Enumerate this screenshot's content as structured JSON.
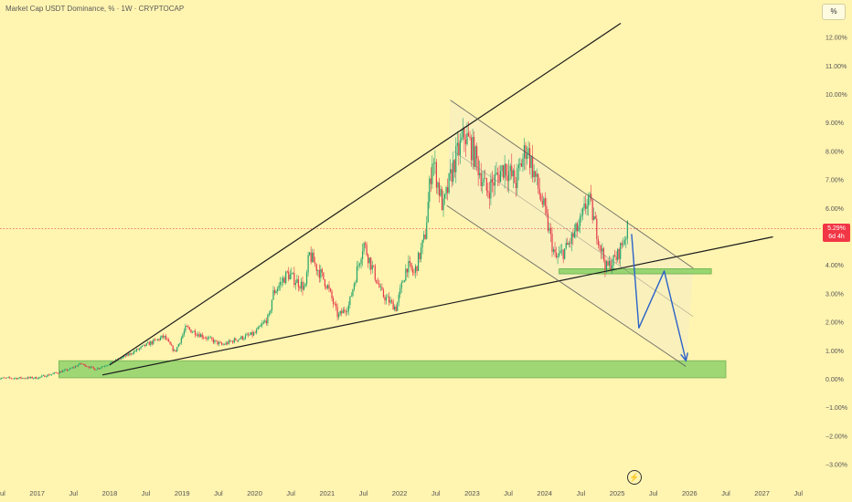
{
  "header": {
    "title": "Market Cap USDT Dominance, % · 1W · CRYPTOCAP",
    "scale_button": "%"
  },
  "price_tag": {
    "value": "5.29%",
    "countdown": "6d 4h"
  },
  "icons": {
    "replay": "lightning-icon"
  },
  "colors": {
    "background": "#fff4b0",
    "up": "#22a46b",
    "down": "#e5394a",
    "zone": "#8fd36a",
    "channel": "#f8efbe",
    "trendline": "#1b1b1b",
    "arrow": "#2b63c9",
    "current_line": "#f23645"
  },
  "chart_data": {
    "type": "candlestick",
    "title": "Market Cap USDT Dominance, % · 1W · CRYPTOCAP",
    "xlabel": "",
    "ylabel": "%",
    "ylim": [
      -3.1,
      12.8
    ],
    "y_ticks": [
      "12.00%",
      "11.00%",
      "10.00%",
      "9.00%",
      "8.00%",
      "7.00%",
      "6.00%",
      "5.00%",
      "4.00%",
      "3.00%",
      "2.00%",
      "1.00%",
      "0.00%",
      "−1.00%",
      "−2.00%",
      "−3.00%"
    ],
    "x_ticks": [
      {
        "label": "Jul",
        "t": 2016.5
      },
      {
        "label": "2017",
        "t": 2017.0
      },
      {
        "label": "Jul",
        "t": 2017.5
      },
      {
        "label": "2018",
        "t": 2018.0
      },
      {
        "label": "Jul",
        "t": 2018.5
      },
      {
        "label": "2019",
        "t": 2019.0
      },
      {
        "label": "Jul",
        "t": 2019.5
      },
      {
        "label": "2020",
        "t": 2020.0
      },
      {
        "label": "Jul",
        "t": 2020.5
      },
      {
        "label": "2021",
        "t": 2021.0
      },
      {
        "label": "Jul",
        "t": 2021.5
      },
      {
        "label": "2022",
        "t": 2022.0
      },
      {
        "label": "Jul",
        "t": 2022.5
      },
      {
        "label": "2023",
        "t": 2023.0
      },
      {
        "label": "Jul",
        "t": 2023.5
      },
      {
        "label": "2024",
        "t": 2024.0
      },
      {
        "label": "Jul",
        "t": 2024.5
      },
      {
        "label": "2025",
        "t": 2025.0
      },
      {
        "label": "Jul",
        "t": 2025.5
      },
      {
        "label": "2026",
        "t": 2026.0
      },
      {
        "label": "Jul",
        "t": 2026.5
      },
      {
        "label": "2027",
        "t": 2027.0
      },
      {
        "label": "Jul",
        "t": 2027.5
      }
    ],
    "price_path": [
      [
        2016.45,
        0.03
      ],
      [
        2017.0,
        0.05
      ],
      [
        2017.2,
        0.18
      ],
      [
        2017.45,
        0.35
      ],
      [
        2017.6,
        0.55
      ],
      [
        2017.8,
        0.35
      ],
      [
        2018.0,
        0.55
      ],
      [
        2018.25,
        0.85
      ],
      [
        2018.5,
        1.2
      ],
      [
        2018.75,
        1.5
      ],
      [
        2018.9,
        0.95
      ],
      [
        2019.05,
        1.8
      ],
      [
        2019.3,
        1.5
      ],
      [
        2019.55,
        1.2
      ],
      [
        2019.75,
        1.4
      ],
      [
        2020.0,
        1.6
      ],
      [
        2020.2,
        2.2
      ],
      [
        2020.25,
        3.0
      ],
      [
        2020.45,
        3.7
      ],
      [
        2020.7,
        3.2
      ],
      [
        2020.75,
        4.4
      ],
      [
        2021.0,
        3.3
      ],
      [
        2021.15,
        2.2
      ],
      [
        2021.3,
        2.6
      ],
      [
        2021.5,
        4.8
      ],
      [
        2021.75,
        3.0
      ],
      [
        2021.95,
        2.5
      ],
      [
        2022.1,
        4.0
      ],
      [
        2022.2,
        3.7
      ],
      [
        2022.35,
        5.0
      ],
      [
        2022.45,
        7.8
      ],
      [
        2022.6,
        6.0
      ],
      [
        2022.75,
        7.6
      ],
      [
        2022.9,
        8.6
      ],
      [
        2023.0,
        8.1
      ],
      [
        2023.2,
        6.6
      ],
      [
        2023.45,
        7.5
      ],
      [
        2023.6,
        6.9
      ],
      [
        2023.75,
        8.2
      ],
      [
        2023.9,
        6.8
      ],
      [
        2024.0,
        5.9
      ],
      [
        2024.15,
        4.2
      ],
      [
        2024.3,
        4.6
      ],
      [
        2024.5,
        5.5
      ],
      [
        2024.6,
        6.4
      ],
      [
        2024.75,
        4.9
      ],
      [
        2024.85,
        3.9
      ],
      [
        2025.0,
        4.3
      ],
      [
        2025.15,
        5.3
      ]
    ],
    "annotations": {
      "current_value": 5.29,
      "upper_trendline": [
        [
          2018.0,
          0.5
        ],
        [
          2025.05,
          12.5
        ]
      ],
      "lower_trendline": [
        [
          2017.9,
          0.15
        ],
        [
          2027.15,
          5.0
        ]
      ],
      "channel_upper": [
        [
          2022.7,
          9.8
        ],
        [
          2026.05,
          3.9
        ]
      ],
      "channel_lower": [
        [
          2022.65,
          6.1
        ],
        [
          2025.95,
          0.45
        ]
      ],
      "channel_mid": [
        [
          2022.75,
          8.0
        ],
        [
          2026.05,
          2.2
        ]
      ],
      "channel_fill": [
        [
          2022.7,
          9.8
        ],
        [
          2026.05,
          3.9
        ],
        [
          2025.95,
          0.45
        ],
        [
          2022.65,
          6.1
        ]
      ],
      "support_zone_major": {
        "t1": 2017.3,
        "t2": 2026.5,
        "y1": 0.05,
        "y2": 0.65
      },
      "support_zone_minor": {
        "t1": 2024.2,
        "t2": 2026.3,
        "y1": 3.7,
        "y2": 3.88
      },
      "projection_arrow": [
        [
          2025.2,
          5.1
        ],
        [
          2025.3,
          1.8
        ],
        [
          2025.65,
          3.8
        ],
        [
          2025.95,
          0.65
        ]
      ]
    }
  }
}
